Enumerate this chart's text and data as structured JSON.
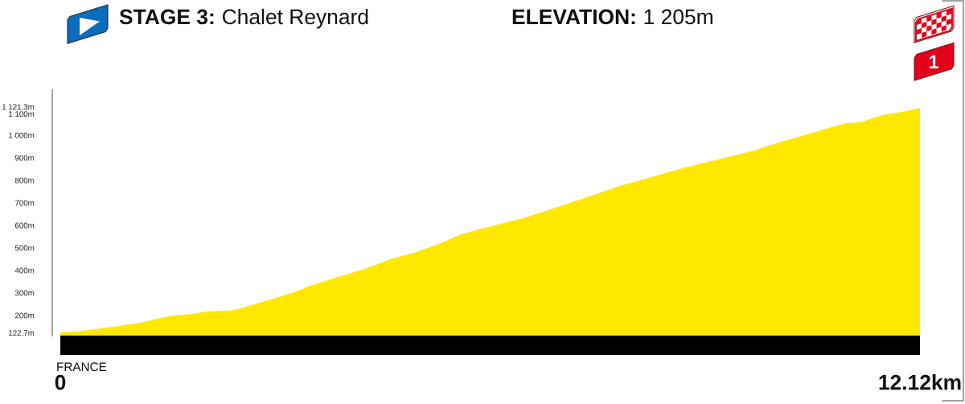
{
  "chart_data": {
    "type": "area",
    "title": "STAGE 3: Chalet Reynard",
    "subtitle": "ELEVATION: 1 205m",
    "annotations": [
      "FRANCE",
      "1"
    ],
    "x": [
      0,
      0.27,
      0.53,
      0.77,
      0.96,
      1.11,
      1.38,
      1.61,
      1.85,
      2.07,
      2.39,
      2.54,
      2.93,
      3.31,
      3.5,
      3.89,
      4.28,
      4.66,
      4.97,
      5.31,
      5.67,
      6.1,
      6.54,
      6.97,
      7.4,
      7.83,
      8.26,
      8.7,
      8.91,
      9.34,
      9.78,
      10.21,
      10.64,
      10.86,
      11.07,
      11.29,
      11.59,
      11.98,
      12.12
    ],
    "series": [
      {
        "color": "#ffe800",
        "values": [
          122.7,
          130,
          140,
          150,
          160,
          165,
          186,
          200,
          206,
          217,
          221,
          231,
          267,
          304,
          329,
          368,
          405,
          450,
          476,
          514,
          562,
          598,
          633,
          676,
          722,
          769,
          807,
          847,
          865,
          897,
          932,
          975,
          1014,
          1035,
          1053,
          1058,
          1089,
          1110,
          1121.3
        ]
      }
    ],
    "xlim": [
      0,
      12.12
    ],
    "xticks": [
      {
        "value": 0,
        "label": "0"
      },
      {
        "value": 12.12,
        "label": "12.12km"
      }
    ],
    "ylim": [
      110,
      1200
    ],
    "yticks": [
      {
        "value": 122.7,
        "label": "122.7m"
      },
      {
        "value": 200,
        "label": "200m"
      },
      {
        "value": 300,
        "label": "300m"
      },
      {
        "value": 400,
        "label": "400m"
      },
      {
        "value": 500,
        "label": "500m"
      },
      {
        "value": 600,
        "label": "600m"
      },
      {
        "value": 700,
        "label": "700m"
      },
      {
        "value": 800,
        "label": "800m"
      },
      {
        "value": 900,
        "label": "900m"
      },
      {
        "value": 1000,
        "label": "1 000m"
      },
      {
        "value": 1100,
        "label": "1 100m"
      },
      {
        "value": 1121.3,
        "label": "1 121.3m"
      }
    ]
  }
}
